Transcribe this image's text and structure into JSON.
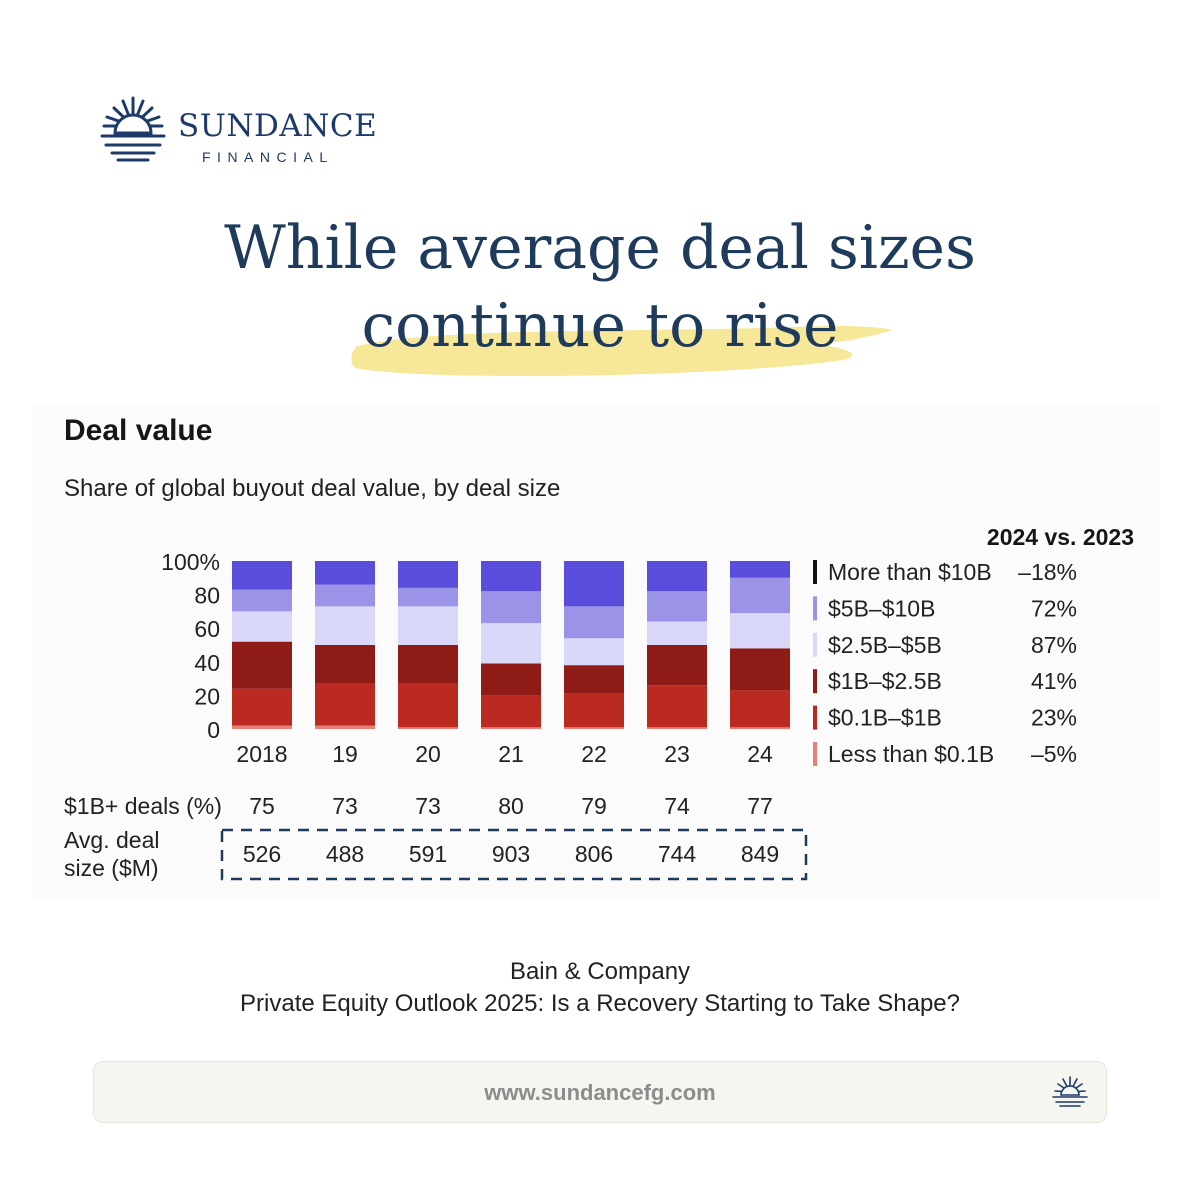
{
  "brand": {
    "name": "SUNDANCE",
    "sub": "FINANCIAL",
    "logo_icon": "sun-horizon-icon"
  },
  "headline": {
    "line1": "While average deal sizes",
    "line2": "continue to rise"
  },
  "colors": {
    "navy": "#1f3b5c",
    "highlight": "#f5e17e"
  },
  "chart_data": {
    "type": "bar",
    "stacked": true,
    "title": "Deal value",
    "subtitle": "Share of global buyout deal value, by deal size",
    "categories": [
      "2018",
      "19",
      "20",
      "21",
      "22",
      "23",
      "24"
    ],
    "ylim": [
      0,
      100
    ],
    "yticks": [
      "0",
      "20",
      "40",
      "60",
      "80",
      "100%"
    ],
    "legend_header": "2024 vs. 2023",
    "legend_position": "right",
    "series": [
      {
        "name": "Less than $0.1B",
        "change": "–5%",
        "color": "#e98077",
        "values": [
          2,
          2,
          1,
          1,
          1,
          1,
          1
        ]
      },
      {
        "name": "$0.1B–$1B",
        "change": "23%",
        "color": "#bb2a20",
        "values": [
          22,
          25,
          26,
          19,
          20,
          25,
          22
        ]
      },
      {
        "name": "$1B–$2.5B",
        "change": "41%",
        "color": "#8e1b15",
        "values": [
          28,
          23,
          23,
          19,
          17,
          24,
          25
        ]
      },
      {
        "name": "$2.5B–$5B",
        "change": "87%",
        "color": "#d9d8f9",
        "values": [
          18,
          23,
          23,
          24,
          16,
          14,
          21
        ]
      },
      {
        "name": "$5B–$10B",
        "change": "72%",
        "color": "#9a93e7",
        "values": [
          13,
          13,
          11,
          19,
          19,
          18,
          21
        ]
      },
      {
        "name": "More than $10B",
        "change": "–18%",
        "color": "#5a4ddb",
        "values": [
          17,
          14,
          16,
          18,
          27,
          18,
          10
        ]
      }
    ],
    "rows": [
      {
        "label": "$1B+ deals (%)",
        "values": [
          "75",
          "73",
          "73",
          "80",
          "79",
          "74",
          "77"
        ]
      },
      {
        "label_lines": [
          "Avg. deal",
          "size ($M)"
        ],
        "values": [
          "526",
          "488",
          "591",
          "903",
          "806",
          "744",
          "849"
        ]
      }
    ],
    "highlight_row": "Avg. deal size ($M)"
  },
  "source": {
    "line1": "Bain & Company",
    "line2": "Private Equity Outlook 2025: Is a Recovery Starting to Take Shape?"
  },
  "footer": {
    "url": "www.sundancefg.com",
    "icon": "sun-horizon-icon"
  }
}
